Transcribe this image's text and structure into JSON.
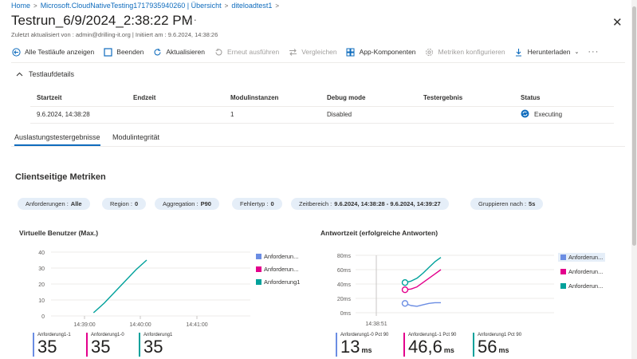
{
  "breadcrumb": [
    "Home",
    "Microsoft.CloudNativeTesting1717935940260 | Übersicht",
    "diteloadtest1"
  ],
  "page": {
    "title": "Testrun_6/9/2024_2:38:22 PM",
    "subtitle": "Zuletzt aktualisiert von : admin@drilling-it.org | Initiiert am : 9.6.2024, 14:38:26"
  },
  "toolbar": [
    {
      "label": "Alle Testläufe anzeigen",
      "icon": "back-arrow-icon",
      "enabled": true
    },
    {
      "label": "Beenden",
      "icon": "stop-square-icon",
      "enabled": true
    },
    {
      "label": "Aktualisieren",
      "icon": "refresh-icon",
      "enabled": true
    },
    {
      "label": "Erneut ausführen",
      "icon": "rerun-icon",
      "enabled": false
    },
    {
      "label": "Vergleichen",
      "icon": "compare-icon",
      "enabled": false
    },
    {
      "label": "App-Komponenten",
      "icon": "app-components-icon",
      "enabled": true
    },
    {
      "label": "Metriken konfigurieren",
      "icon": "gear-icon",
      "enabled": false
    },
    {
      "label": "Herunterladen",
      "icon": "download-icon",
      "enabled": true
    }
  ],
  "details": {
    "title": "Testlaufdetails",
    "headers": [
      "Startzeit",
      "Endzeit",
      "Modulinstanzen",
      "Debug mode",
      "Testergebnis",
      "Status"
    ],
    "row": {
      "start": "9.6.2024, 14:38:28",
      "end": "",
      "instances": "1",
      "debug": "Disabled",
      "result": "",
      "status": "Executing"
    }
  },
  "tabs": [
    "Auslastungstestergebnisse",
    "Modulintegrität"
  ],
  "section_title": "Clientseitige Metriken",
  "filters": [
    {
      "label": "Anforderungen :",
      "value": "Alle"
    },
    {
      "label": "Region :",
      "value": "0"
    },
    {
      "label": "Aggregation :",
      "value": "P90"
    },
    {
      "label": "Fehlertyp :",
      "value": "0"
    },
    {
      "label": "Zeitbereich :",
      "value": "9.6.2024, 14:38:28 - 9.6.2024, 14:39:27"
    },
    {
      "label": "Gruppieren nach :",
      "value": "5s"
    }
  ],
  "colors": {
    "blue": "#6b8de3",
    "pink": "#e3008c",
    "teal": "#00a19b",
    "accent": "#0f6cbd"
  },
  "chart_data": [
    {
      "type": "line",
      "title": "Virtuelle Benutzer (Max.)",
      "x_ticks": [
        "14:39:00",
        "14:40:00",
        "14:41:00"
      ],
      "y_ticks": [
        "40",
        "30",
        "20",
        "10",
        "0"
      ],
      "ylim": [
        0,
        40
      ],
      "legend": [
        "Anforderun...",
        "Anforderun...",
        "Anforderung1"
      ],
      "series": [
        {
          "name": "Anforderung1",
          "x": [
            0.62,
            0.7,
            0.78,
            0.86,
            0.94,
            1.02
          ],
          "y": [
            2,
            8,
            15,
            22,
            29,
            35
          ]
        }
      ]
    },
    {
      "type": "line",
      "title": "Antwortzeit (erfolgreiche Antworten)",
      "x_ticks": [
        "14:38:51"
      ],
      "y_ticks": [
        "80ms",
        "60ms",
        "40ms",
        "20ms",
        "0ms"
      ],
      "ylim": [
        0,
        80
      ],
      "legend": [
        "Anforderun...",
        "Anforderun...",
        "Anforderun..."
      ],
      "series": [
        {
          "name": "Anforderun...",
          "x": [
            0,
            1,
            2,
            3,
            4,
            5,
            6
          ],
          "y": [
            13,
            10,
            9,
            11,
            13,
            14,
            14
          ]
        },
        {
          "name": "Anforderun...",
          "x": [
            0,
            1,
            2,
            3,
            4,
            5,
            6
          ],
          "y": [
            32,
            33,
            36,
            42,
            48,
            54,
            60
          ]
        },
        {
          "name": "Anforderun...",
          "x": [
            0,
            1,
            2,
            3,
            4,
            5,
            6
          ],
          "y": [
            42,
            44,
            48,
            55,
            63,
            71,
            77
          ]
        }
      ]
    }
  ],
  "metrics_left": [
    {
      "label": "Anforderung1-1",
      "value": "35",
      "unit": ""
    },
    {
      "label": "Anforderung1-0",
      "value": "35",
      "unit": ""
    },
    {
      "label": "Anforderung1",
      "value": "35",
      "unit": ""
    }
  ],
  "metrics_right": [
    {
      "label": "Anforderung1-0 Pct 90",
      "value": "13",
      "unit": "ms"
    },
    {
      "label": "Anforderung1-1 Pct 90",
      "value": "46,6",
      "unit": "ms"
    },
    {
      "label": "Anforderung1 Pct 90",
      "value": "56",
      "unit": "ms"
    }
  ]
}
